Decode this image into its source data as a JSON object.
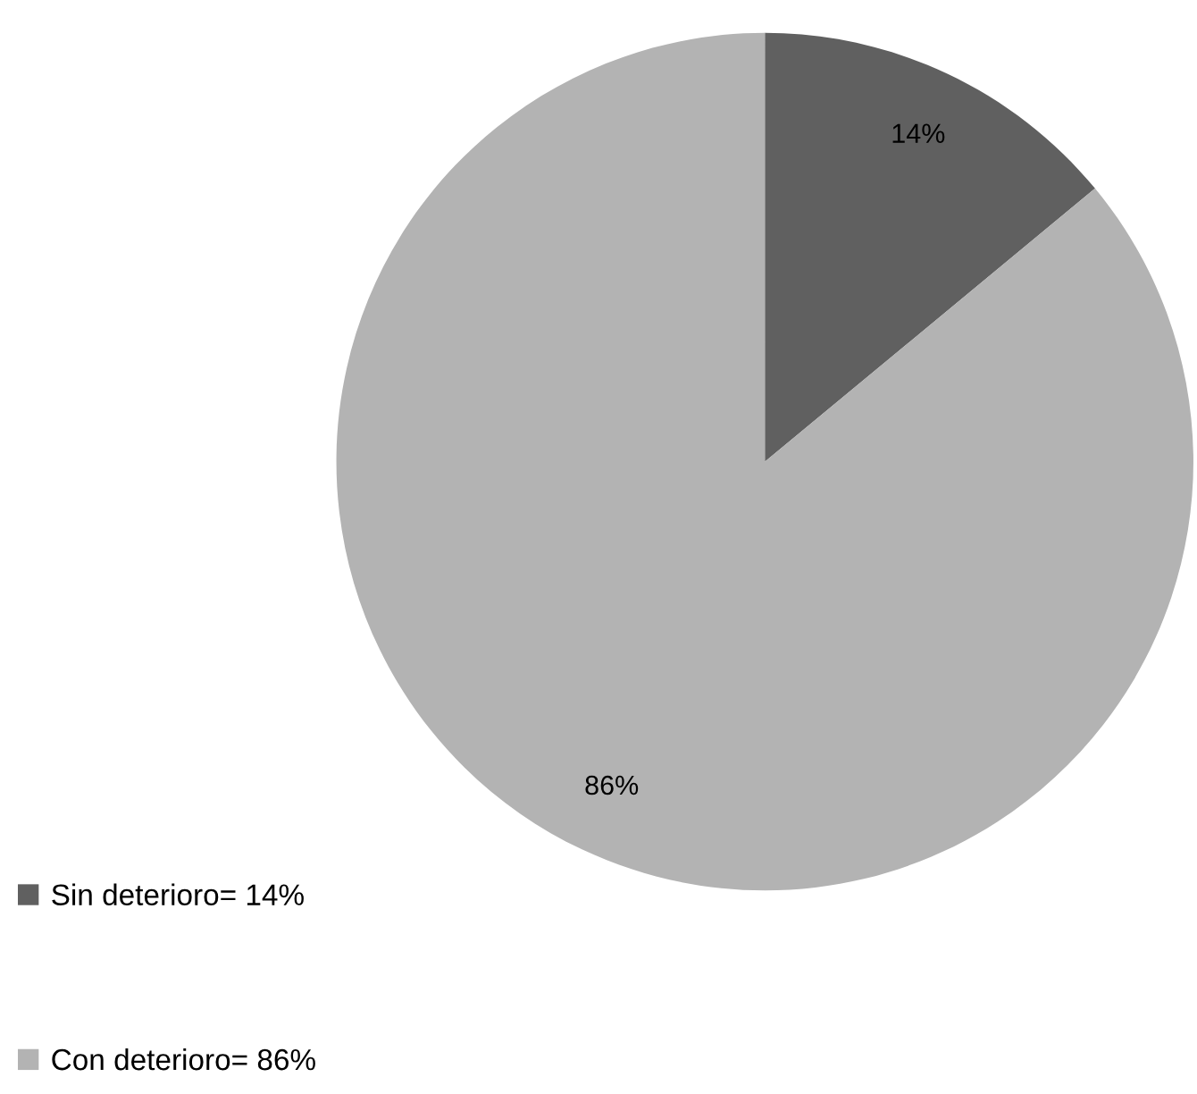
{
  "chart_data": {
    "type": "pie",
    "categories": [
      "Sin deterioro= 14%",
      "Con deterioro= 86%"
    ],
    "values": [
      14,
      86
    ],
    "colors": [
      "#606060",
      "#b3b3b3"
    ],
    "value_labels": [
      "14%",
      "86%"
    ],
    "legend": "bottom left"
  }
}
